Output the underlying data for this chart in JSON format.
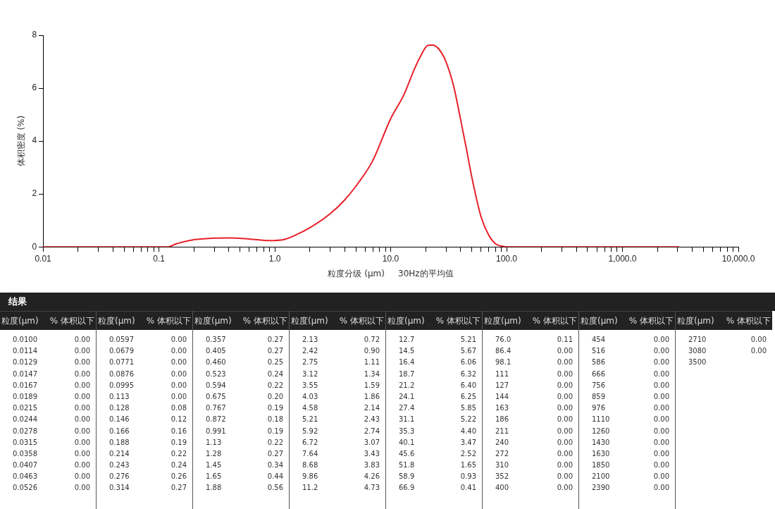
{
  "chart_data": [
    {
      "type": "line",
      "xlabel": "粒度分级 (μm)     30Hz的平均值",
      "ylabel": "体积密度 (%)",
      "log": "x",
      "grid": false,
      "legend": false,
      "marker": "none",
      "xlim": [
        0.01,
        10000
      ],
      "ylim": [
        0,
        8
      ],
      "yticks": [
        0,
        2,
        4,
        6,
        8
      ],
      "xticks": [
        0.01,
        {
          "value": 0.02,
          "label": null
        },
        {
          "value": 0.03,
          "label": null
        },
        {
          "value": 0.04,
          "label": null
        },
        {
          "value": 0.05,
          "label": null
        },
        {
          "value": 0.06,
          "label": null
        },
        {
          "value": 0.07,
          "label": null
        },
        {
          "value": 0.08,
          "label": null
        },
        {
          "value": 0.09,
          "label": null
        },
        0.1,
        {
          "value": 0.2,
          "label": null
        },
        {
          "value": 0.3,
          "label": null
        },
        {
          "value": 0.4,
          "label": null
        },
        {
          "value": 0.5,
          "label": null
        },
        {
          "value": 0.6,
          "label": null
        },
        {
          "value": 0.7,
          "label": null
        },
        {
          "value": 0.8,
          "label": null
        },
        {
          "value": 0.9,
          "label": null
        },
        {
          "value": 1,
          "label": "1.0"
        },
        {
          "value": 2,
          "label": null
        },
        {
          "value": 3,
          "label": null
        },
        {
          "value": 4,
          "label": null
        },
        {
          "value": 5,
          "label": null
        },
        {
          "value": 6,
          "label": null
        },
        {
          "value": 7,
          "label": null
        },
        {
          "value": 8,
          "label": null
        },
        {
          "value": 9,
          "label": null
        },
        {
          "value": 10,
          "label": "10.0"
        },
        {
          "value": 20,
          "label": null
        },
        {
          "value": 30,
          "label": null
        },
        {
          "value": 40,
          "label": null
        },
        {
          "value": 50,
          "label": null
        },
        {
          "value": 60,
          "label": null
        },
        {
          "value": 70,
          "label": null
        },
        {
          "value": 80,
          "label": null
        },
        {
          "value": 90,
          "label": null
        },
        {
          "value": 100,
          "label": "100.0"
        },
        {
          "value": 200,
          "label": null
        },
        {
          "value": 300,
          "label": null
        },
        {
          "value": 400,
          "label": null
        },
        {
          "value": 500,
          "label": null
        },
        {
          "value": 600,
          "label": null
        },
        {
          "value": 700,
          "label": null
        },
        {
          "value": 800,
          "label": null
        },
        {
          "value": 900,
          "label": null
        },
        {
          "value": 1000,
          "label": "1,000.0"
        },
        {
          "value": 2000,
          "label": null
        },
        {
          "value": 3000,
          "label": null
        },
        {
          "value": 4000,
          "label": null
        },
        {
          "value": 5000,
          "label": null
        },
        {
          "value": 6000,
          "label": null
        },
        {
          "value": 7000,
          "label": null
        },
        {
          "value": 8000,
          "label": null
        },
        {
          "value": 9000,
          "label": null
        },
        {
          "value": 10000,
          "label": "10,000.0"
        }
      ],
      "series": [
        {
          "color": "#e8202a",
          "x": [
            0.01,
            0.12,
            0.14,
            0.2,
            0.3,
            0.4,
            0.6,
            0.9,
            1.2,
            1.5,
            2,
            3,
            4,
            5,
            7,
            10,
            13,
            16,
            18,
            21,
            23,
            26,
            30,
            35,
            40,
            45,
            50,
            60,
            70,
            80,
            90,
            100,
            3080
          ],
          "values": [
            0,
            0,
            0.11,
            0.27,
            0.33,
            0.34,
            0.3,
            0.24,
            0.28,
            0.44,
            0.72,
            1.25,
            1.77,
            2.29,
            3.26,
            4.85,
            5.75,
            6.72,
            7.19,
            7.62,
            7.63,
            7.48,
            7.0,
            6.06,
            4.84,
            3.71,
            2.66,
            1.16,
            0.45,
            0.12,
            0.03,
            0,
            0
          ]
        }
      ]
    },
    {
      "type": "other",
      "title": "结果",
      "xlabel": "粒度(μm)",
      "ylabel": "% 体积以下",
      "categories": [
        "0.0100",
        "0.0114",
        "0.0129",
        "0.0147",
        "0.0167",
        "0.0189",
        "0.0215",
        "0.0244",
        "0.0278",
        "0.0315",
        "0.0358",
        "0.0407",
        "0.0463",
        "0.0526",
        "0.0597",
        "0.0679",
        "0.0771",
        "0.0876",
        "0.0995",
        "0.113",
        "0.128",
        "0.146",
        "0.166",
        "0.188",
        "0.214",
        "0.243",
        "0.276",
        "0.314",
        "0.357",
        "0.405",
        "0.460",
        "0.523",
        "0.594",
        "0.675",
        "0.767",
        "0.872",
        "0.991",
        "1.13",
        "1.28",
        "1.45",
        "1.65",
        "1.88",
        "2.13",
        "2.42",
        "2.75",
        "3.12",
        "3.55",
        "4.03",
        "4.58",
        "5.21",
        "5.92",
        "6.72",
        "7.64",
        "8.68",
        "9.86",
        "11.2",
        "12.7",
        "14.5",
        "16.4",
        "18.7",
        "21.2",
        "24.1",
        "27.4",
        "31.1",
        "35.3",
        "40.1",
        "45.6",
        "51.8",
        "58.9",
        "66.9",
        "76.0",
        "86.4",
        "98.1",
        "111",
        "127",
        "144",
        "163",
        "186",
        "211",
        "240",
        "272",
        "310",
        "352",
        "400",
        "454",
        "516",
        "586",
        "666",
        "756",
        "859",
        "976",
        "1110",
        "1260",
        "1430",
        "1630",
        "1850",
        "2100",
        "2390",
        "2710",
        "3080",
        "3500"
      ],
      "value_labels": [
        "0.00",
        "0.00",
        "0.00",
        "0.00",
        "0.00",
        "0.00",
        "0.00",
        "0.00",
        "0.00",
        "0.00",
        "0.00",
        "0.00",
        "0.00",
        "0.00",
        "0.00",
        "0.00",
        "0.00",
        "0.00",
        "0.00",
        "0.00",
        "0.08",
        "0.12",
        "0.16",
        "0.19",
        "0.22",
        "0.24",
        "0.26",
        "0.27",
        "0.27",
        "0.27",
        "0.25",
        "0.24",
        "0.22",
        "0.20",
        "0.19",
        "0.18",
        "0.19",
        "0.22",
        "0.27",
        "0.34",
        "0.44",
        "0.56",
        "0.72",
        "0.90",
        "1.11",
        "1.34",
        "1.59",
        "1.86",
        "2.14",
        "2.43",
        "2.74",
        "3.07",
        "3.43",
        "3.83",
        "4.26",
        "4.73",
        "5.21",
        "5.67",
        "6.06",
        "6.32",
        "6.40",
        "6.25",
        "5.85",
        "5.22",
        "4.40",
        "3.47",
        "2.52",
        "1.65",
        "0.93",
        "0.41",
        "0.11",
        "0.00",
        "0.00",
        "0.00",
        "0.00",
        "0.00",
        "0.00",
        "0.00",
        "0.00",
        "0.00",
        "0.00",
        "0.00",
        "0.00",
        "0.00",
        "0.00",
        "0.00",
        "0.00",
        "0.00",
        "0.00",
        "0.00",
        "0.00",
        "0.00",
        "0.00",
        "0.00",
        "0.00",
        "0.00",
        "0.00",
        "0.00",
        "0.00",
        "0.00",
        null
      ]
    }
  ]
}
